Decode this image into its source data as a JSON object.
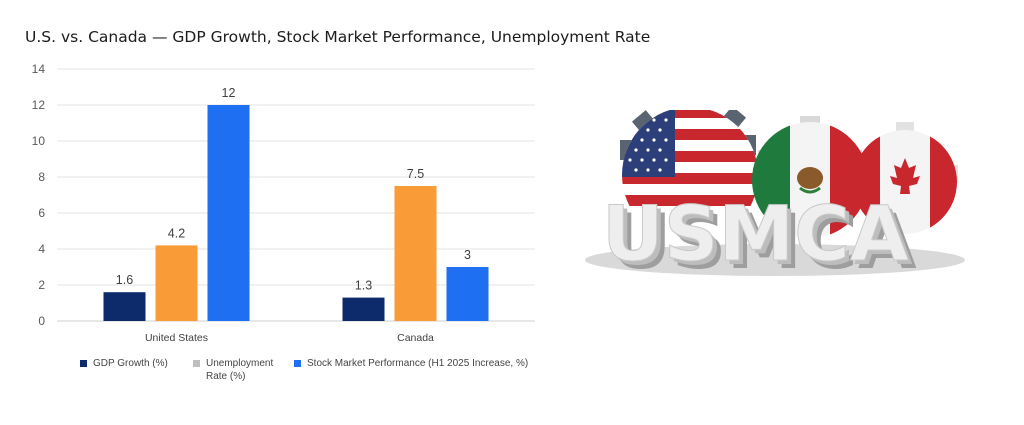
{
  "chart_data": {
    "type": "bar",
    "title": "U.S. vs. Canada — GDP Growth, Stock Market Performance, Unemployment Rate",
    "xlabel": "",
    "ylabel": "",
    "categories": [
      "United States",
      "Canada"
    ],
    "ylim": [
      0,
      14
    ],
    "yticks": [
      0,
      2,
      4,
      6,
      8,
      10,
      12,
      14
    ],
    "grid": true,
    "legend_position": "bottom",
    "series": [
      {
        "name": "GDP Growth (%)",
        "color": "#0d2b6b",
        "values": [
          1.6,
          1.3
        ],
        "labels": [
          "1.6",
          "1.3"
        ]
      },
      {
        "name": "Unemployment Rate (%)",
        "color": "#f99b36",
        "legend_color": "#bfbfbf",
        "values": [
          4.2,
          7.5
        ],
        "labels": [
          "4.2",
          "7.5"
        ]
      },
      {
        "name": "Stock Market Performance (H1 2025 Increase, %)",
        "color": "#1e6ff2",
        "values": [
          12,
          3
        ],
        "labels": [
          "12",
          "3"
        ]
      }
    ]
  },
  "legend": {
    "items": [
      {
        "label_lines": [
          "GDP Growth (%)"
        ]
      },
      {
        "label_lines": [
          "Unemployment",
          "Rate (%)"
        ]
      },
      {
        "label_lines": [
          "Stock Market Performance (H1 2025 Increase, %)"
        ]
      }
    ]
  },
  "logo": {
    "text": "USMCA",
    "flags": [
      "united-states",
      "mexico",
      "canada"
    ]
  }
}
